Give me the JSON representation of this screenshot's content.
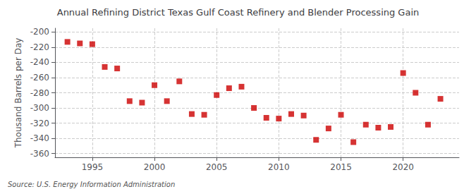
{
  "chart_data": {
    "type": "scatter",
    "title": "Annual Refining District Texas Gulf Coast Refinery and Blender Processing Gain",
    "ylabel": "Thousand Barrels per Day",
    "source": "Source: U.S. Energy Information Administration",
    "x": [
      1993,
      1994,
      1995,
      1996,
      1997,
      1998,
      1999,
      2000,
      2001,
      2002,
      2003,
      2004,
      2005,
      2006,
      2007,
      2008,
      2009,
      2010,
      2011,
      2012,
      2013,
      2014,
      2015,
      2016,
      2017,
      2018,
      2019,
      2020,
      2021,
      2022,
      2023
    ],
    "values": [
      -213,
      -215,
      -216,
      -246,
      -248,
      -291,
      -293,
      -270,
      -291,
      -265,
      -308,
      -309,
      -283,
      -274,
      -272,
      -300,
      -313,
      -314,
      -308,
      -310,
      -342,
      -327,
      -309,
      -345,
      -322,
      -326,
      -325,
      -254,
      -280,
      -322,
      -288
    ],
    "color": "#cc0000",
    "marker": "square",
    "xlim": [
      1992.0,
      2024.5
    ],
    "ylim": [
      -365,
      -195
    ],
    "xticks": [
      1995,
      2000,
      2005,
      2010,
      2015,
      2020
    ],
    "yticks": [
      -200,
      -220,
      -240,
      -260,
      -280,
      -300,
      -320,
      -340,
      -360
    ],
    "grid": true
  }
}
